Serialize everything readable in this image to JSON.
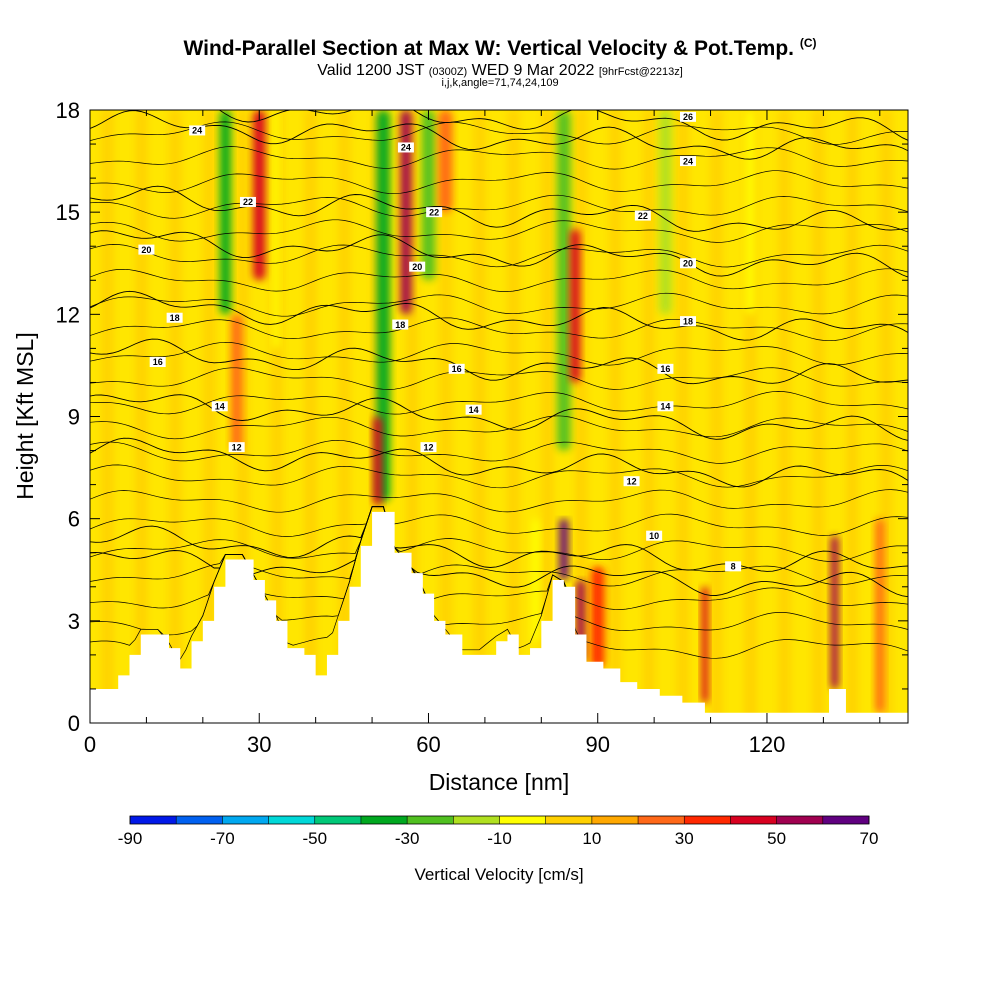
{
  "header": {
    "title": "Wind-Parallel Section at Max W: Vertical Velocity & Pot.Temp.",
    "title_mark": "(C)",
    "valid_prefix": "Valid 1200 JST",
    "valid_utc": "(0300Z)",
    "valid_date": "WED 9 Mar 2022",
    "valid_fcst": "[9hrFcst@2213z]",
    "indices": "i,j,k,angle=71,74,24,109"
  },
  "chart_data": {
    "type": "heatmap",
    "xlabel": "Distance [nm]",
    "ylabel": "Height [Kft MSL]",
    "xlim": [
      0,
      145
    ],
    "ylim": [
      0,
      18
    ],
    "x_ticks": [
      0,
      30,
      60,
      90,
      120
    ],
    "y_ticks": [
      0,
      3,
      6,
      9,
      12,
      15,
      18
    ],
    "colorbar": {
      "label": "Vertical Velocity [cm/s]",
      "tick_labels": [
        "-90",
        "-70",
        "-50",
        "-30",
        "-10",
        "10",
        "30",
        "50",
        "70"
      ],
      "bounds": [
        -90,
        -80,
        -70,
        -60,
        -50,
        -40,
        -30,
        -20,
        -10,
        0,
        10,
        20,
        30,
        40,
        50,
        60,
        70
      ],
      "colors": [
        "#0018e8",
        "#0060f0",
        "#00a8f0",
        "#00d8d8",
        "#00c878",
        "#00a820",
        "#50c020",
        "#b0e020",
        "#ffff00",
        "#ffd000",
        "#ffa800",
        "#ff6818",
        "#ff2800",
        "#d80020",
        "#a00050",
        "#600080"
      ]
    },
    "background_color": "#ffe600",
    "terrain": [
      [
        0,
        1.0
      ],
      [
        3,
        1.0
      ],
      [
        5,
        1.4
      ],
      [
        7,
        2.0
      ],
      [
        9,
        2.6
      ],
      [
        12,
        2.6
      ],
      [
        14,
        2.2
      ],
      [
        16,
        1.6
      ],
      [
        18,
        2.4
      ],
      [
        20,
        3.0
      ],
      [
        22,
        4.0
      ],
      [
        24,
        4.8
      ],
      [
        27,
        4.8
      ],
      [
        29,
        4.2
      ],
      [
        31,
        3.6
      ],
      [
        33,
        3.0
      ],
      [
        35,
        2.2
      ],
      [
        38,
        2.0
      ],
      [
        40,
        1.4
      ],
      [
        42,
        2.0
      ],
      [
        44,
        3.0
      ],
      [
        46,
        4.0
      ],
      [
        48,
        5.2
      ],
      [
        50,
        6.2
      ],
      [
        52,
        6.2
      ],
      [
        54,
        5.0
      ],
      [
        57,
        4.4
      ],
      [
        59,
        3.8
      ],
      [
        61,
        3.0
      ],
      [
        63,
        2.6
      ],
      [
        66,
        2.0
      ],
      [
        69,
        2.0
      ],
      [
        72,
        2.4
      ],
      [
        74,
        2.6
      ],
      [
        76,
        2.0
      ],
      [
        78,
        2.2
      ],
      [
        80,
        3.0
      ],
      [
        82,
        4.2
      ],
      [
        84,
        4.0
      ],
      [
        86,
        2.6
      ],
      [
        88,
        1.8
      ],
      [
        91,
        1.6
      ],
      [
        94,
        1.2
      ],
      [
        97,
        1.0
      ],
      [
        101,
        0.8
      ],
      [
        105,
        0.6
      ],
      [
        109,
        0.3
      ],
      [
        113,
        0.3
      ],
      [
        118,
        0.3
      ],
      [
        124,
        0.3
      ],
      [
        129,
        0.3
      ],
      [
        131,
        1.0
      ],
      [
        133,
        1.0
      ],
      [
        134,
        0.3
      ],
      [
        137,
        0.3
      ],
      [
        145,
        0.3
      ]
    ],
    "updraft_plumes": [
      {
        "x": 24,
        "y0": 12.0,
        "y1": 18,
        "w": 2.0,
        "value": -40
      },
      {
        "x": 26,
        "y0": 8.0,
        "y1": 12.0,
        "w": 2.0,
        "value": 20
      },
      {
        "x": 30,
        "y0": 13.0,
        "y1": 18,
        "w": 2.2,
        "value": 40
      },
      {
        "x": 33,
        "y0": 11.0,
        "y1": 18,
        "w": 1.2,
        "value": -10
      },
      {
        "x": 52,
        "y0": 6.5,
        "y1": 18,
        "w": 2.4,
        "value": -40
      },
      {
        "x": 51,
        "y0": 6.4,
        "y1": 9.0,
        "w": 1.6,
        "value": 40
      },
      {
        "x": 56,
        "y0": 12.0,
        "y1": 18,
        "w": 2.0,
        "value": 50
      },
      {
        "x": 60,
        "y0": 13.0,
        "y1": 18,
        "w": 2.4,
        "value": -30
      },
      {
        "x": 63,
        "y0": 15.0,
        "y1": 18,
        "w": 2.4,
        "value": 20
      },
      {
        "x": 84,
        "y0": 8.0,
        "y1": 18,
        "w": 2.4,
        "value": -30
      },
      {
        "x": 86,
        "y0": 10.0,
        "y1": 14.5,
        "w": 1.8,
        "value": 40
      },
      {
        "x": 84,
        "y0": 4.2,
        "y1": 6.0,
        "w": 1.6,
        "value": 70
      },
      {
        "x": 87,
        "y0": 1.8,
        "y1": 4.2,
        "w": 1.6,
        "value": 50
      },
      {
        "x": 90,
        "y0": 1.6,
        "y1": 4.6,
        "w": 2.4,
        "value": 30
      },
      {
        "x": 102,
        "y0": 12.0,
        "y1": 18,
        "w": 2.2,
        "value": -20
      },
      {
        "x": 109,
        "y0": 0.6,
        "y1": 4.0,
        "w": 1.2,
        "value": 40
      },
      {
        "x": 132,
        "y0": 1.0,
        "y1": 5.5,
        "w": 1.4,
        "value": 50
      },
      {
        "x": 79,
        "y0": 2.4,
        "y1": 6.0,
        "w": 1.4,
        "value": -10
      },
      {
        "x": 117,
        "y0": 12.0,
        "y1": 18,
        "w": 1.6,
        "value": -10
      },
      {
        "x": 140,
        "y0": 0.3,
        "y1": 6.0,
        "w": 1.6,
        "value": 20
      }
    ],
    "isentropes": [
      {
        "value": 8,
        "base": 4.4,
        "labels": [
          [
            114,
            4.6
          ]
        ]
      },
      {
        "value": 10,
        "base": 5.0,
        "labels": [
          [
            100,
            5.5
          ]
        ]
      },
      {
        "value": 12,
        "base": 7.6,
        "labels": [
          [
            26,
            8.1
          ],
          [
            60,
            8.1
          ],
          [
            96,
            7.1
          ]
        ]
      },
      {
        "value": 14,
        "base": 9.0,
        "labels": [
          [
            23,
            9.3
          ],
          [
            68,
            9.2
          ],
          [
            102,
            9.3
          ]
        ]
      },
      {
        "value": 16,
        "base": 10.5,
        "labels": [
          [
            12,
            10.6
          ],
          [
            65,
            10.4
          ],
          [
            102,
            10.4
          ]
        ]
      },
      {
        "value": 18,
        "base": 11.9,
        "labels": [
          [
            15,
            11.9
          ],
          [
            55,
            11.7
          ],
          [
            106,
            11.8
          ]
        ]
      },
      {
        "value": 20,
        "base": 13.8,
        "labels": [
          [
            10,
            13.9
          ],
          [
            58,
            13.4
          ],
          [
            106,
            13.5
          ]
        ]
      },
      {
        "value": 22,
        "base": 15.0,
        "labels": [
          [
            28,
            15.3
          ],
          [
            61,
            15.0
          ],
          [
            98,
            14.9
          ]
        ]
      },
      {
        "value": 24,
        "base": 17.2,
        "labels": [
          [
            19,
            17.4
          ],
          [
            56,
            16.9
          ],
          [
            106,
            16.5
          ]
        ]
      },
      {
        "value": 26,
        "base": 17.8,
        "labels": [
          [
            106,
            17.8
          ]
        ]
      }
    ]
  }
}
